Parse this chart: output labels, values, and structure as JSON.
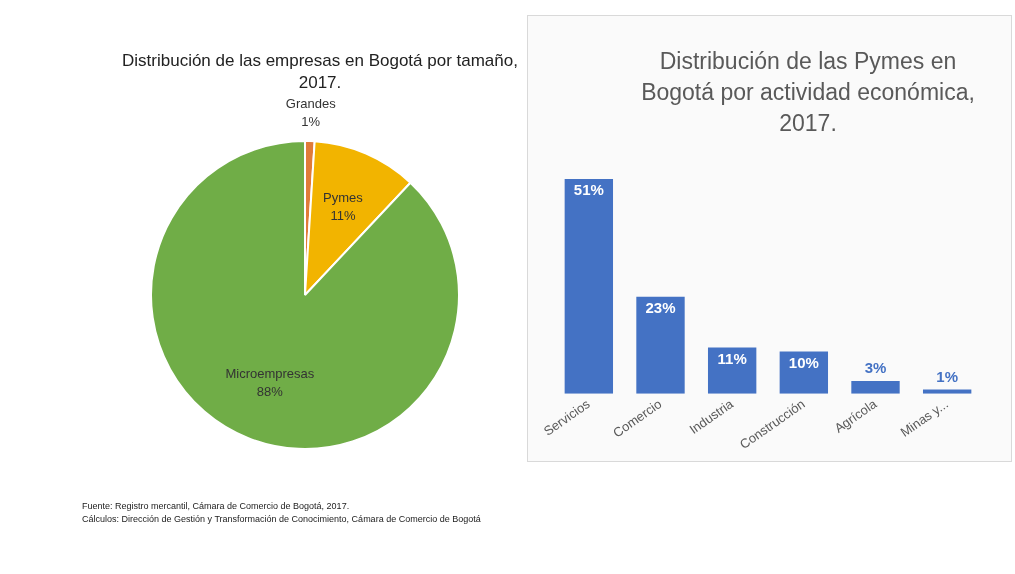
{
  "chart_data": [
    {
      "type": "pie",
      "title": "Distribución de las empresas en Bogotá por tamaño, 2017.",
      "categories": [
        "Grandes",
        "Pymes",
        "Microempresas"
      ],
      "values": [
        1,
        11,
        88
      ],
      "colors": [
        "#e07b39",
        "#f2b400",
        "#70ad47"
      ],
      "value_labels": [
        "1%",
        "11%",
        "88%"
      ],
      "legend": false,
      "annotations": [
        "Fuente: Registro mercantil, Cámara de Comercio  de Bogotá, 2017.",
        "Cálculos: Dirección de Gestión y Transformación de Conocimiento, Cámara de Comercio de Bogotá"
      ]
    },
    {
      "type": "bar",
      "title": "Distribución de las Pymes en Bogotá por actividad económica, 2017.",
      "categories": [
        "Servicios",
        "Comercio",
        "Industria",
        "Construcción",
        "Agrícola",
        "Minas y..."
      ],
      "values": [
        51,
        23,
        11,
        10,
        3,
        1
      ],
      "color": "#4472c4",
      "value_labels": [
        "51%",
        "23%",
        "11%",
        "10%",
        "3%",
        "1%"
      ],
      "legend": false,
      "grid": false,
      "tick_labels": "x"
    }
  ]
}
